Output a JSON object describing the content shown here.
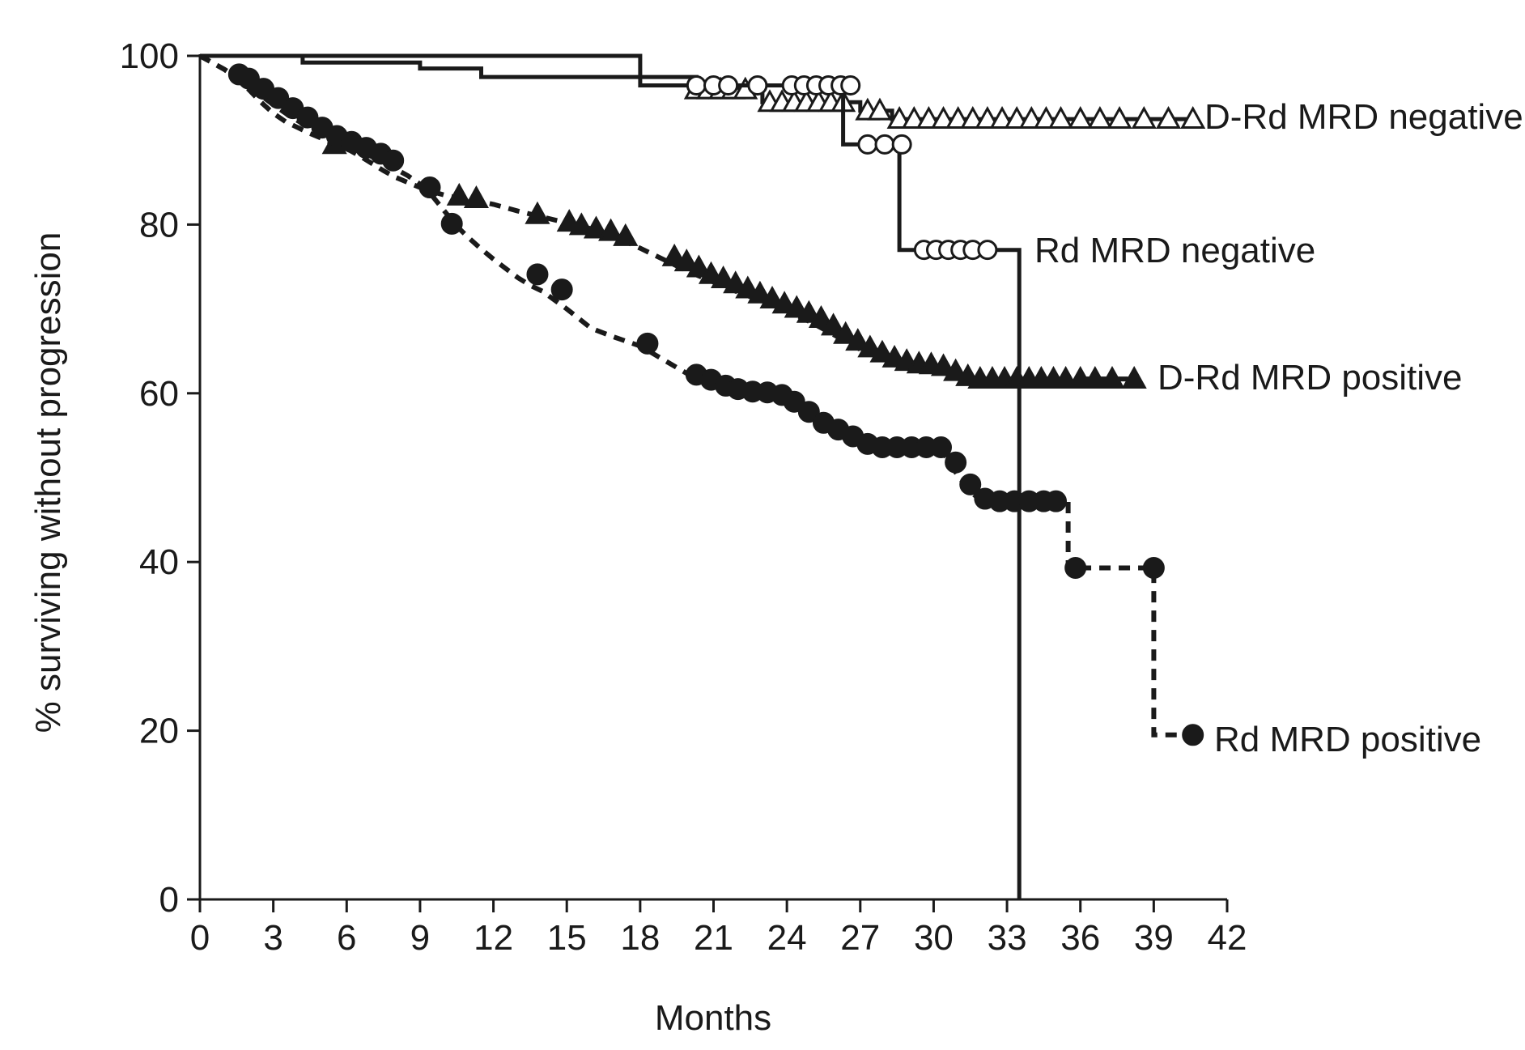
{
  "chart_data": {
    "type": "line",
    "subtype": "kaplan-meier",
    "title": "",
    "xlabel": "Months",
    "ylabel": "% surviving without progression",
    "xlim": [
      0,
      42
    ],
    "ylim": [
      0,
      100
    ],
    "xticks": [
      "0",
      "3",
      "6",
      "9",
      "12",
      "15",
      "18",
      "21",
      "24",
      "27",
      "30",
      "33",
      "36",
      "39",
      "42"
    ],
    "yticks": [
      "0",
      "20",
      "40",
      "60",
      "80",
      "100"
    ],
    "grid": false,
    "legend": "inline labels at right end of each curve",
    "colors": {
      "line": "#1a1a1a",
      "background": "#ffffff"
    },
    "series": [
      {
        "name": "D-Rd MRD negative",
        "line_style": "solid",
        "marker": "open-triangle",
        "x": [
          0,
          18,
          18,
          20.3,
          20.3,
          23,
          23,
          27,
          27,
          28.3,
          28.3,
          40.7
        ],
        "y": [
          100,
          100,
          97.5,
          97.5,
          96,
          96,
          94.5,
          94.5,
          93.5,
          93.5,
          92.5,
          92.5
        ],
        "censor_x": [
          20.3,
          20.8,
          21.3,
          21.8,
          22.3,
          23.3,
          23.8,
          24.3,
          24.8,
          25.3,
          25.8,
          26.3,
          27.3,
          27.8,
          28.6,
          29.2,
          29.8,
          30.4,
          31.0,
          31.6,
          32.2,
          32.8,
          33.4,
          34.0,
          34.6,
          35.2,
          36.0,
          36.8,
          37.6,
          38.6,
          39.6,
          40.6
        ],
        "censor_y": [
          96,
          96,
          96,
          96,
          96,
          94.5,
          94.5,
          94.5,
          94.5,
          94.5,
          94.5,
          94.5,
          93.5,
          93.5,
          92.5,
          92.5,
          92.5,
          92.5,
          92.5,
          92.5,
          92.5,
          92.5,
          92.5,
          92.5,
          92.5,
          92.5,
          92.5,
          92.5,
          92.5,
          92.5,
          92.5,
          92.5
        ]
      },
      {
        "name": "Rd MRD negative",
        "line_style": "solid",
        "marker": "open-circle",
        "x": [
          0,
          4.2,
          4.2,
          9,
          9,
          11.5,
          11.5,
          18,
          18,
          26.3,
          26.3,
          28.6,
          28.6,
          33.5,
          33.5
        ],
        "y": [
          100,
          100,
          99.2,
          99.2,
          98.5,
          98.5,
          97.5,
          97.5,
          96.5,
          96.5,
          89.5,
          89.5,
          77,
          77,
          0
        ],
        "censor_x": [
          20.3,
          21.0,
          21.6,
          22.8,
          24.2,
          24.7,
          25.2,
          25.7,
          26.2,
          26.6,
          27.3,
          28.0,
          28.7,
          29.6,
          30.1,
          30.6,
          31.1,
          31.6,
          32.2
        ],
        "censor_y": [
          96.5,
          96.5,
          96.5,
          96.5,
          96.5,
          96.5,
          96.5,
          96.5,
          96.5,
          96.5,
          89.5,
          89.5,
          89.5,
          77,
          77,
          77,
          77,
          77,
          77
        ]
      },
      {
        "name": "D-Rd MRD positive",
        "line_style": "dashed",
        "marker": "filled-triangle",
        "x": [
          0,
          0.5,
          1,
          1.5,
          2,
          2.5,
          3,
          3.5,
          4,
          4.5,
          5,
          5.5,
          6,
          6.5,
          7,
          7.5,
          8,
          8.5,
          9,
          9.5,
          10,
          10.5,
          11,
          12,
          13,
          14,
          15,
          16,
          17,
          18,
          19,
          20,
          21,
          22,
          23,
          24,
          25,
          26,
          27,
          28,
          29,
          30,
          31,
          32,
          33,
          34,
          35,
          36,
          37,
          38.4
        ],
        "y": [
          100,
          99.2,
          98.4,
          97.3,
          96,
          94.5,
          93.2,
          92.2,
          91.5,
          90.8,
          90.2,
          89.5,
          89,
          88.2,
          87.3,
          86.4,
          85.6,
          85,
          84.4,
          83.9,
          83.5,
          83.2,
          83,
          82.4,
          81.6,
          80.9,
          80.2,
          79.5,
          78.5,
          77.2,
          75.8,
          74.4,
          73.2,
          72,
          70.9,
          69.8,
          68.4,
          66.8,
          65.2,
          64.1,
          63.5,
          63.2,
          62.2,
          61.7,
          61.7,
          61.7,
          61.7,
          61.7,
          61.7,
          61.7
        ],
        "censor_x": [
          5.5,
          10.6,
          11.3,
          13.8,
          15.1,
          15.6,
          16.2,
          16.8,
          17.4,
          19.4,
          19.9,
          20.4,
          20.9,
          21.4,
          21.9,
          22.4,
          22.9,
          23.4,
          23.9,
          24.4,
          24.9,
          25.4,
          25.9,
          26.4,
          26.9,
          27.4,
          27.9,
          28.4,
          28.9,
          29.4,
          29.9,
          30.4,
          30.9,
          31.4,
          31.9,
          32.4,
          32.9,
          33.4,
          33.9,
          34.4,
          34.9,
          35.4,
          36.0,
          36.6,
          37.3,
          38.2
        ],
        "censor_y": [
          89.5,
          83.4,
          83.1,
          81.2,
          80.3,
          79.9,
          79.5,
          79.2,
          78.6,
          76.2,
          75.6,
          74.9,
          74.1,
          73.6,
          73.0,
          72.4,
          71.8,
          71.2,
          70.6,
          70.1,
          69.5,
          68.9,
          68.0,
          67.0,
          66.2,
          65.4,
          64.8,
          64.2,
          63.8,
          63.5,
          63.4,
          63.2,
          62.6,
          62.0,
          61.7,
          61.7,
          61.7,
          61.7,
          61.7,
          61.7,
          61.7,
          61.7,
          61.7,
          61.7,
          61.7,
          61.7
        ]
      },
      {
        "name": "Rd MRD positive",
        "line_style": "dashed",
        "marker": "filled-circle",
        "x": [
          0,
          0.5,
          1,
          1.5,
          2,
          2.5,
          3,
          3.5,
          4,
          4.5,
          5,
          5.5,
          6,
          6.5,
          7,
          7.5,
          8,
          8.5,
          9,
          9.5,
          10,
          10.5,
          11,
          11.5,
          12,
          12.5,
          13,
          13.5,
          14,
          15,
          16,
          17,
          18,
          19,
          20,
          21,
          22,
          23,
          24,
          25,
          26,
          27,
          28,
          29,
          30,
          30.5,
          31,
          31.5,
          32,
          33,
          34,
          35,
          35.5,
          35.5,
          39,
          39,
          40.6
        ],
        "y": [
          100,
          99.2,
          98.4,
          97.5,
          96.4,
          95.3,
          94.2,
          93.2,
          92.3,
          91.5,
          90.8,
          90.2,
          89.5,
          88.8,
          88.1,
          87.4,
          86.6,
          85.8,
          84.8,
          83.4,
          81.6,
          79.8,
          78.4,
          77.1,
          75.9,
          74.8,
          73.7,
          72.8,
          72.1,
          70,
          67.7,
          66.6,
          65.6,
          63.9,
          62.2,
          60.9,
          60.3,
          60.1,
          59.3,
          57.2,
          55.8,
          54.3,
          53.6,
          53.6,
          53.6,
          52.5,
          50.2,
          48.3,
          47.2,
          47.2,
          47.2,
          47.2,
          47.2,
          39.3,
          39.3,
          19.5,
          19.5
        ],
        "censor_x": [
          1.6,
          2.0,
          2.6,
          3.2,
          3.8,
          4.4,
          5.0,
          5.6,
          6.2,
          6.8,
          7.4,
          7.9,
          9.4,
          10.3,
          13.8,
          14.8,
          18.3,
          20.3,
          20.9,
          21.5,
          22.0,
          22.6,
          23.2,
          23.8,
          24.3,
          24.9,
          25.5,
          26.1,
          26.7,
          27.3,
          27.9,
          28.5,
          29.1,
          29.7,
          30.3,
          30.9,
          31.5,
          32.1,
          32.7,
          33.3,
          33.9,
          34.5,
          35.0,
          35.8,
          39.0,
          40.6
        ],
        "censor_y": [
          97.8,
          97.3,
          96.1,
          95.0,
          93.8,
          92.7,
          91.5,
          90.5,
          89.8,
          89.1,
          88.4,
          87.6,
          84.4,
          80.1,
          74.1,
          72.3,
          65.9,
          62.2,
          61.6,
          60.9,
          60.5,
          60.2,
          60.1,
          59.8,
          59.0,
          57.8,
          56.5,
          55.7,
          54.9,
          54.0,
          53.6,
          53.6,
          53.6,
          53.6,
          53.6,
          51.8,
          49.2,
          47.5,
          47.2,
          47.2,
          47.2,
          47.2,
          47.2,
          39.3,
          39.3,
          19.5
        ]
      }
    ],
    "annotations": [
      {
        "text": "D-Rd MRD negative",
        "series": "D-Rd MRD negative"
      },
      {
        "text": "Rd MRD negative",
        "series": "Rd MRD negative"
      },
      {
        "text": "D-Rd MRD positive",
        "series": "D-Rd MRD positive"
      },
      {
        "text": "Rd MRD positive",
        "series": "Rd MRD positive"
      }
    ]
  }
}
